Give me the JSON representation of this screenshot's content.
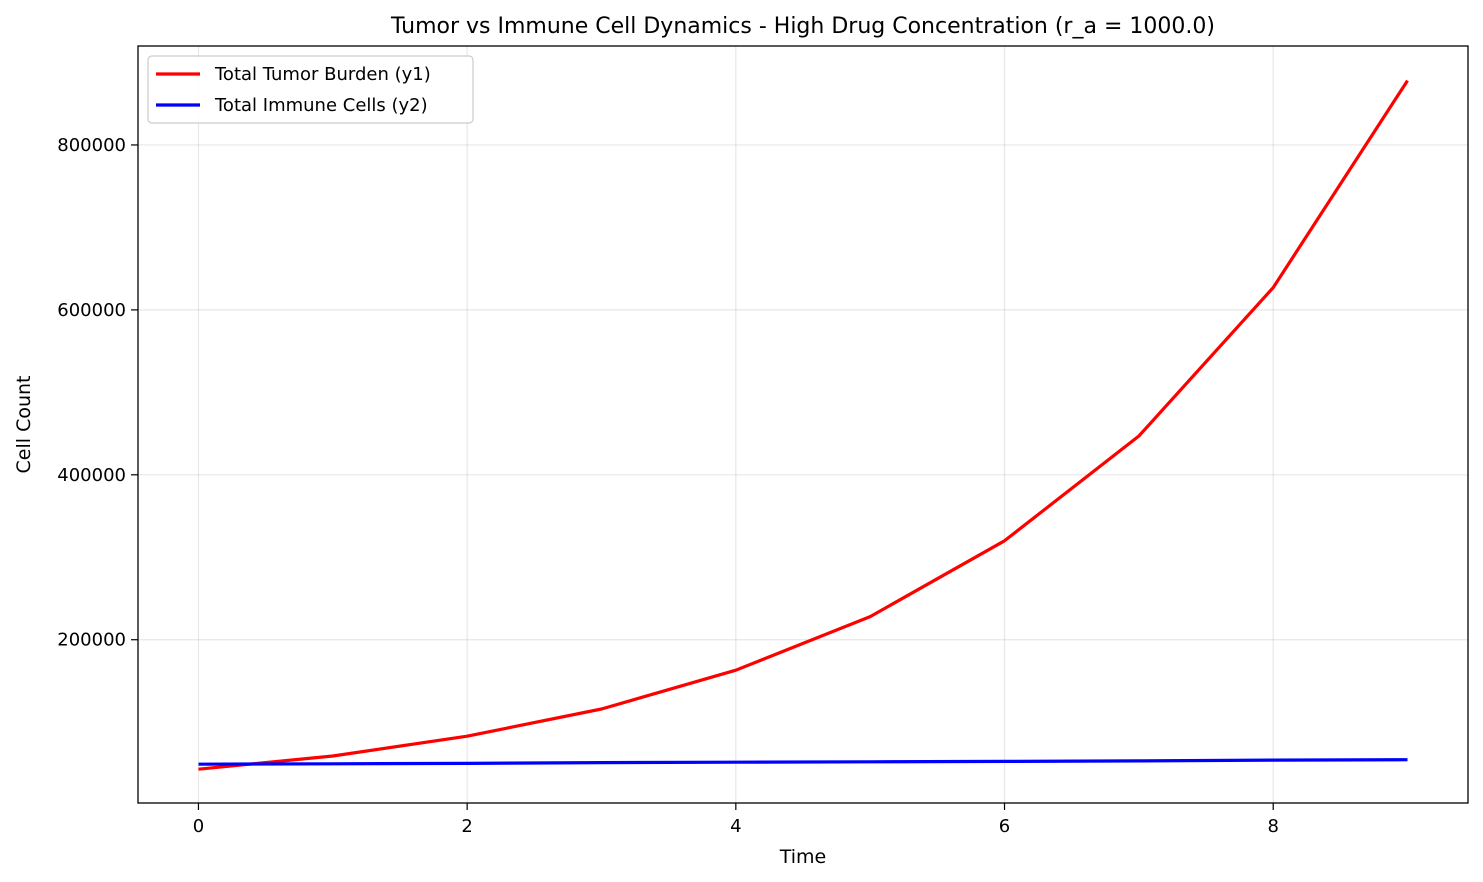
{
  "chart_data": {
    "type": "line",
    "title": "Tumor vs Immune Cell Dynamics - High Drug Concentration (r_a = 1000.0)",
    "xlabel": "Time",
    "ylabel": "Cell Count",
    "xlim": [
      -0.45,
      9.45
    ],
    "ylim": [
      2000,
      920000
    ],
    "x_ticks": [
      0,
      2,
      4,
      6,
      8
    ],
    "x_tick_labels": [
      "0",
      "2",
      "4",
      "6",
      "8"
    ],
    "y_ticks": [
      200000,
      400000,
      600000,
      800000
    ],
    "y_tick_labels": [
      "200000",
      "400000",
      "600000",
      "800000"
    ],
    "grid": true,
    "legend_position": "top-left",
    "series": [
      {
        "name": "Total Tumor Burden (y1)",
        "color": "#ff0000",
        "x": [
          0,
          1,
          2,
          3,
          4,
          5,
          6,
          7,
          8,
          9
        ],
        "y": [
          43000,
          59000,
          83000,
          116000,
          163000,
          228000,
          320000,
          447000,
          627000,
          878000
        ]
      },
      {
        "name": "Total Immune Cells (y2)",
        "color": "#0000ff",
        "x": [
          0,
          1,
          2,
          3,
          4,
          5,
          6,
          7,
          8,
          9
        ],
        "y": [
          49000,
          49500,
          50000,
          51000,
          51500,
          52000,
          52500,
          53000,
          54000,
          54500
        ]
      }
    ]
  }
}
